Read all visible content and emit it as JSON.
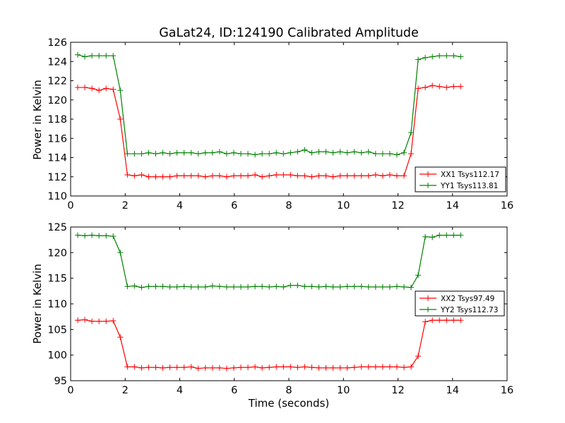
{
  "chart_data": [
    {
      "type": "line",
      "title": "GaLat24, ID:124190 Calibrated Amplitude",
      "xlabel": "",
      "ylabel": "Power in Kelvin",
      "xlim": [
        0,
        16
      ],
      "ylim": [
        110,
        126
      ],
      "xticks": [
        "0",
        "2",
        "4",
        "6",
        "8",
        "10",
        "12",
        "14",
        "16"
      ],
      "yticks": [
        "110",
        "112",
        "114",
        "116",
        "118",
        "120",
        "122",
        "124",
        "126"
      ],
      "legend_position": "lower-right",
      "x": [
        0.26,
        0.52,
        0.78,
        1.04,
        1.3,
        1.56,
        1.82,
        2.08,
        2.34,
        2.6,
        2.86,
        3.12,
        3.38,
        3.64,
        3.9,
        4.16,
        4.42,
        4.68,
        4.94,
        5.2,
        5.46,
        5.72,
        5.98,
        6.24,
        6.5,
        6.76,
        7.02,
        7.28,
        7.54,
        7.8,
        8.06,
        8.32,
        8.58,
        8.84,
        9.1,
        9.36,
        9.62,
        9.88,
        10.14,
        10.4,
        10.66,
        10.92,
        11.18,
        11.44,
        11.7,
        11.96,
        12.22,
        12.48,
        12.74,
        13.0,
        13.26,
        13.52,
        13.78,
        14.04,
        14.3
      ],
      "series": [
        {
          "name": "XX1 Tsys112.17",
          "color": "#ff0000",
          "values": [
            121.3,
            121.3,
            121.2,
            121.0,
            121.2,
            121.1,
            118.0,
            112.2,
            112.1,
            112.2,
            112.0,
            112.0,
            112.0,
            112.0,
            112.1,
            112.1,
            112.1,
            112.1,
            112.0,
            112.1,
            112.1,
            112.0,
            112.1,
            112.1,
            112.1,
            112.2,
            112.0,
            112.1,
            112.2,
            112.2,
            112.2,
            112.1,
            112.1,
            112.0,
            112.1,
            112.1,
            112.0,
            112.1,
            112.1,
            112.1,
            112.1,
            112.1,
            112.2,
            112.1,
            112.2,
            112.1,
            112.1,
            114.4,
            121.2,
            121.3,
            121.5,
            121.4,
            121.3,
            121.4,
            121.4
          ]
        },
        {
          "name": "YY1 Tsys113.81",
          "color": "#008000",
          "values": [
            124.7,
            124.5,
            124.6,
            124.6,
            124.6,
            124.6,
            121.0,
            114.4,
            114.4,
            114.4,
            114.5,
            114.4,
            114.5,
            114.4,
            114.5,
            114.5,
            114.5,
            114.4,
            114.5,
            114.5,
            114.6,
            114.4,
            114.5,
            114.4,
            114.4,
            114.3,
            114.4,
            114.4,
            114.5,
            114.4,
            114.5,
            114.6,
            114.8,
            114.5,
            114.6,
            114.6,
            114.5,
            114.6,
            114.5,
            114.6,
            114.5,
            114.6,
            114.4,
            114.4,
            114.4,
            114.3,
            114.5,
            116.6,
            124.2,
            124.4,
            124.5,
            124.6,
            124.6,
            124.6,
            124.5
          ]
        }
      ]
    },
    {
      "type": "line",
      "title": "",
      "xlabel": "Time (seconds)",
      "ylabel": "Power in Kelvin",
      "xlim": [
        0,
        16
      ],
      "ylim": [
        95,
        125
      ],
      "xticks": [
        "0",
        "2",
        "4",
        "6",
        "8",
        "10",
        "12",
        "14",
        "16"
      ],
      "yticks": [
        "95",
        "100",
        "105",
        "110",
        "115",
        "120",
        "125"
      ],
      "legend_position": "center-right",
      "x": [
        0.26,
        0.52,
        0.78,
        1.04,
        1.3,
        1.56,
        1.82,
        2.08,
        2.34,
        2.6,
        2.86,
        3.12,
        3.38,
        3.64,
        3.9,
        4.16,
        4.42,
        4.68,
        4.94,
        5.2,
        5.46,
        5.72,
        5.98,
        6.24,
        6.5,
        6.76,
        7.02,
        7.28,
        7.54,
        7.8,
        8.06,
        8.32,
        8.58,
        8.84,
        9.1,
        9.36,
        9.62,
        9.88,
        10.14,
        10.4,
        10.66,
        10.92,
        11.18,
        11.44,
        11.7,
        11.96,
        12.22,
        12.48,
        12.74,
        13.0,
        13.26,
        13.52,
        13.78,
        14.04,
        14.3
      ],
      "series": [
        {
          "name": "XX2 Tsys97.49",
          "color": "#ff0000",
          "values": [
            106.8,
            106.9,
            106.6,
            106.6,
            106.6,
            106.7,
            103.5,
            97.7,
            97.7,
            97.5,
            97.6,
            97.6,
            97.5,
            97.6,
            97.6,
            97.6,
            97.7,
            97.4,
            97.5,
            97.5,
            97.5,
            97.4,
            97.5,
            97.6,
            97.6,
            97.7,
            97.5,
            97.6,
            97.7,
            97.7,
            97.7,
            97.6,
            97.7,
            97.6,
            97.5,
            97.5,
            97.5,
            97.5,
            97.5,
            97.6,
            97.7,
            97.7,
            97.7,
            97.7,
            97.7,
            97.7,
            97.6,
            97.7,
            99.8,
            106.5,
            106.8,
            106.8,
            106.8,
            106.8,
            106.8
          ]
        },
        {
          "name": "YY2 Tsys112.73",
          "color": "#008000",
          "values": [
            123.4,
            123.3,
            123.4,
            123.3,
            123.3,
            123.2,
            120.0,
            113.4,
            113.5,
            113.2,
            113.4,
            113.4,
            113.4,
            113.3,
            113.3,
            113.4,
            113.3,
            113.3,
            113.3,
            113.5,
            113.4,
            113.3,
            113.3,
            113.3,
            113.3,
            113.4,
            113.4,
            113.3,
            113.4,
            113.3,
            113.6,
            113.6,
            113.4,
            113.4,
            113.3,
            113.4,
            113.3,
            113.3,
            113.4,
            113.4,
            113.4,
            113.3,
            113.3,
            113.3,
            113.3,
            113.4,
            113.3,
            113.2,
            115.6,
            123.1,
            123.0,
            123.4,
            123.4,
            123.4,
            123.4
          ]
        }
      ]
    }
  ]
}
